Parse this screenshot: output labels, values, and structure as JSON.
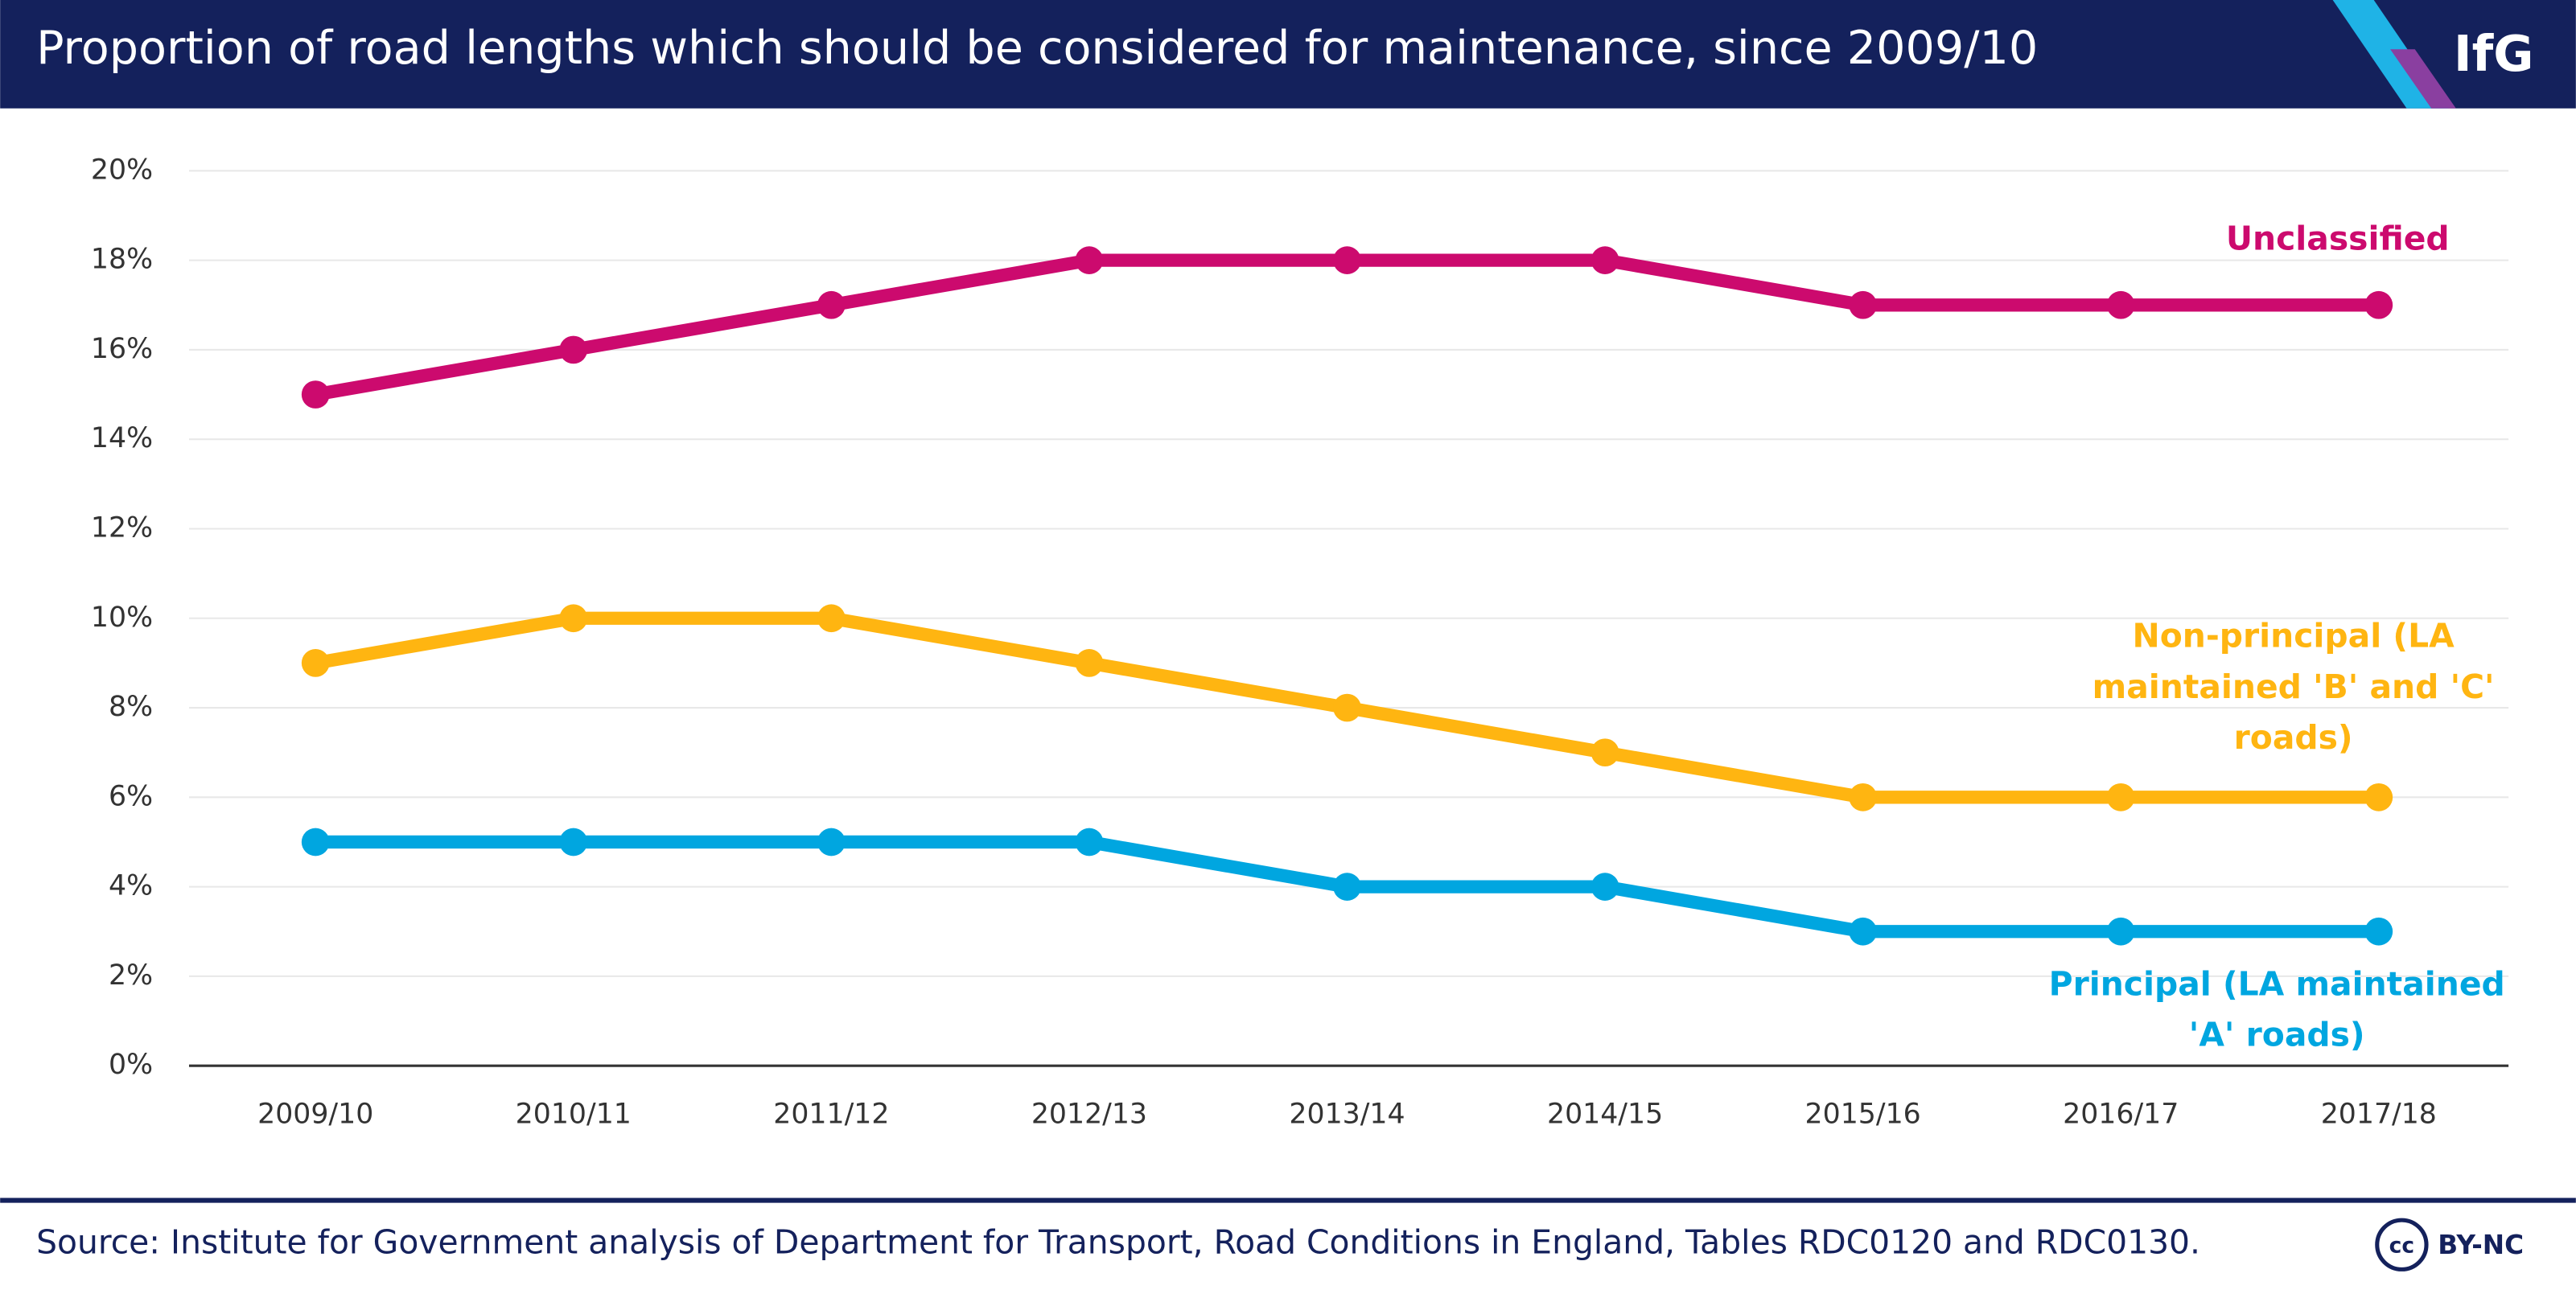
{
  "chart_data": {
    "type": "line",
    "title": "Proportion of road lengths which should be considered for maintenance, since 2009/10",
    "logo": "IfG",
    "categories": [
      "2009/10",
      "2010/11",
      "2011/12",
      "2012/13",
      "2013/14",
      "2014/15",
      "2015/16",
      "2016/17",
      "2017/18"
    ],
    "series": [
      {
        "name": "Unclassified",
        "color": "#cc0a6e",
        "values": [
          15,
          16,
          17,
          18,
          18,
          18,
          17,
          17,
          17
        ]
      },
      {
        "name": "Non-principal (LA maintained 'B' and 'C' roads)",
        "color": "#ffb511",
        "values": [
          9,
          10,
          10,
          9,
          8,
          7,
          6,
          6,
          6
        ]
      },
      {
        "name": "Principal (LA maintained 'A' roads)",
        "color": "#00a6e0",
        "values": [
          5,
          5,
          5,
          5,
          4,
          4,
          3,
          3,
          3
        ]
      }
    ],
    "ylim": [
      0,
      20
    ],
    "yticks": [
      {
        "value": 0,
        "label": "0%"
      },
      {
        "value": 2,
        "label": "2%"
      },
      {
        "value": 4,
        "label": "4%"
      },
      {
        "value": 6,
        "label": "6%"
      },
      {
        "value": 8,
        "label": "8%"
      },
      {
        "value": 10,
        "label": "10%"
      },
      {
        "value": 12,
        "label": "12%"
      },
      {
        "value": 14,
        "label": "14%"
      },
      {
        "value": 16,
        "label": "16%"
      },
      {
        "value": 18,
        "label": "18%"
      },
      {
        "value": 20,
        "label": "20%"
      }
    ],
    "grid": true,
    "source": "Source: Institute for Government analysis of Department for Transport, Road Conditions in England, Tables RDC0120 and RDC0130.",
    "license_icon": "cc",
    "license": "BY-NC"
  }
}
